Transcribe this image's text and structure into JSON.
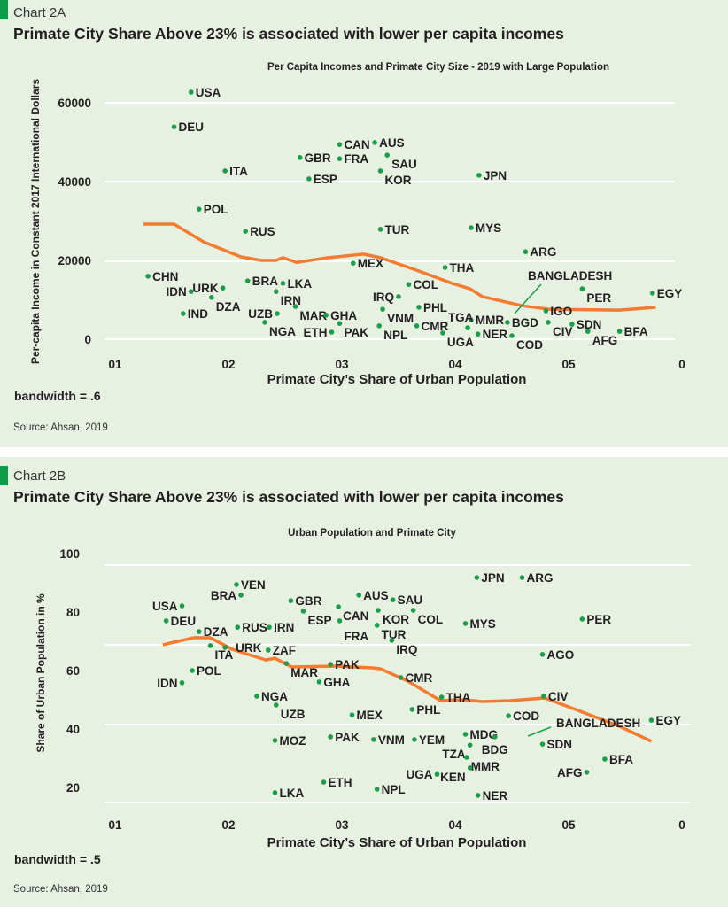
{
  "colors": {
    "background": "#e6f1e2",
    "dots": "#1a9e48",
    "smoother": "#f47b30",
    "callout": "#1a9e48",
    "tag": "#0f9a48"
  },
  "chart_a": {
    "kicker": "Chart 2A",
    "title": "Primate City Share Above 23% is associated with lower per capita incomes",
    "source": "Source: Ahsan, 2019"
  },
  "chart_b": {
    "kicker": "Chart 2B",
    "title": "Primate City Share Above 23% is associated with lower per capita incomes",
    "source": "Source: Ahsan, 2019"
  },
  "chart_data": [
    {
      "type": "scatter",
      "title": "Per Capita Incomes and Primate City Size - 2019 with Large Population",
      "xlabel": "Primate City’s Share of Urban Population",
      "ylabel": "Per-capita Income in Constant 2017 International Dollars",
      "note": "bandwidth = .6",
      "xlim": [
        0.1,
        0.6
      ],
      "ylim": [
        0,
        60000
      ],
      "x_ticks": [
        {
          "value": 0.1,
          "label": "01"
        },
        {
          "value": 0.2,
          "label": "02"
        },
        {
          "value": 0.3,
          "label": "03"
        },
        {
          "value": 0.4,
          "label": "04"
        },
        {
          "value": 0.5,
          "label": "05"
        },
        {
          "value": 0.6,
          "label": "0"
        }
      ],
      "y_ticks": [
        {
          "value": 60000,
          "label": "60000"
        },
        {
          "value": 40000,
          "label": "40000"
        },
        {
          "value": 20000,
          "label": "20000"
        },
        {
          "value": 0,
          "label": "0"
        }
      ],
      "grid": "horizontal",
      "points": [
        {
          "label": "USA",
          "x": 0.167,
          "y": 62700
        },
        {
          "label": "DEU",
          "x": 0.152,
          "y": 53900
        },
        {
          "label": "ITA",
          "x": 0.197,
          "y": 42700
        },
        {
          "label": "CAN",
          "x": 0.298,
          "y": 49400
        },
        {
          "label": "AUS",
          "x": 0.329,
          "y": 49900
        },
        {
          "label": "GBR",
          "x": 0.263,
          "y": 46100
        },
        {
          "label": "FRA",
          "x": 0.298,
          "y": 45800
        },
        {
          "label": "SAU",
          "x": 0.34,
          "y": 46700
        },
        {
          "label": "ESP",
          "x": 0.271,
          "y": 40700
        },
        {
          "label": "KOR",
          "x": 0.334,
          "y": 42700
        },
        {
          "label": "JPN",
          "x": 0.421,
          "y": 41600
        },
        {
          "label": "POL",
          "x": 0.174,
          "y": 33000
        },
        {
          "label": "RUS",
          "x": 0.215,
          "y": 27400
        },
        {
          "label": "TUR",
          "x": 0.334,
          "y": 27900
        },
        {
          "label": "MYS",
          "x": 0.414,
          "y": 28300
        },
        {
          "label": "ARG",
          "x": 0.462,
          "y": 22200
        },
        {
          "label": "MEX",
          "x": 0.31,
          "y": 19300
        },
        {
          "label": "THA",
          "x": 0.391,
          "y": 18200
        },
        {
          "label": "CHN",
          "x": 0.129,
          "y": 16000
        },
        {
          "label": "BRA",
          "x": 0.217,
          "y": 14800
        },
        {
          "label": "LKA",
          "x": 0.248,
          "y": 14200
        },
        {
          "label": "URK",
          "x": 0.195,
          "y": 13000
        },
        {
          "label": "IDN",
          "x": 0.167,
          "y": 12100
        },
        {
          "label": "IRN",
          "x": 0.242,
          "y": 12100
        },
        {
          "label": "DZA",
          "x": 0.185,
          "y": 10600
        },
        {
          "label": "COL",
          "x": 0.359,
          "y": 13900
        },
        {
          "label": "PER",
          "x": 0.512,
          "y": 12800
        },
        {
          "label": "EGY",
          "x": 0.574,
          "y": 11700
        },
        {
          "label": "IRQ",
          "x": 0.35,
          "y": 10800
        },
        {
          "label": "VNM",
          "x": 0.336,
          "y": 7600
        },
        {
          "label": "PHL",
          "x": 0.368,
          "y": 8100
        },
        {
          "label": "MAR",
          "x": 0.259,
          "y": 8300
        },
        {
          "label": "UZB",
          "x": 0.243,
          "y": 6500
        },
        {
          "label": "IND",
          "x": 0.16,
          "y": 6500
        },
        {
          "label": "GHA",
          "x": 0.286,
          "y": 6100
        },
        {
          "label": "NGA",
          "x": 0.232,
          "y": 4300
        },
        {
          "label": "PAK",
          "x": 0.298,
          "y": 4000
        },
        {
          "label": "ETH",
          "x": 0.291,
          "y": 1800
        },
        {
          "label": "NPL",
          "x": 0.333,
          "y": 3400
        },
        {
          "label": "CMR",
          "x": 0.366,
          "y": 3400
        },
        {
          "label": "UGA",
          "x": 0.389,
          "y": 1600
        },
        {
          "label": "MMR",
          "x": 0.414,
          "y": 4900
        },
        {
          "label": "TGA",
          "x": 0.411,
          "y": 2900
        },
        {
          "label": "NER",
          "x": 0.42,
          "y": 1300
        },
        {
          "label": "BGD",
          "x": 0.446,
          "y": 4300
        },
        {
          "label": "COD",
          "x": 0.45,
          "y": 900
        },
        {
          "label": "IGO",
          "x": 0.48,
          "y": 7200
        },
        {
          "label": "CIV",
          "x": 0.482,
          "y": 4300
        },
        {
          "label": "SDN",
          "x": 0.503,
          "y": 3800
        },
        {
          "label": "AFG",
          "x": 0.517,
          "y": 2000
        },
        {
          "label": "BFA",
          "x": 0.545,
          "y": 2000
        }
      ],
      "smoother": [
        [
          0.125,
          29200
        ],
        [
          0.152,
          29200
        ],
        [
          0.178,
          24700
        ],
        [
          0.211,
          20900
        ],
        [
          0.229,
          20000
        ],
        [
          0.242,
          20000
        ],
        [
          0.248,
          20700
        ],
        [
          0.26,
          19500
        ],
        [
          0.288,
          20700
        ],
        [
          0.319,
          21600
        ],
        [
          0.334,
          20700
        ],
        [
          0.366,
          17500
        ],
        [
          0.397,
          14200
        ],
        [
          0.413,
          12800
        ],
        [
          0.424,
          10800
        ],
        [
          0.459,
          8500
        ],
        [
          0.483,
          7600
        ],
        [
          0.545,
          7400
        ],
        [
          0.577,
          8100
        ]
      ],
      "annotation": {
        "text": "BANGLADESH",
        "points_to": "BGD"
      }
    },
    {
      "type": "scatter",
      "title": "Urban Population and Primate City",
      "xlabel": "Primate City’s Share of Urban Population",
      "ylabel": "Share of Urban Population in %",
      "note": "bandwidth = .5",
      "xlim": [
        0.1,
        0.6
      ],
      "ylim": [
        20,
        100
      ],
      "x_ticks": [
        {
          "value": 0.1,
          "label": "01"
        },
        {
          "value": 0.2,
          "label": "02"
        },
        {
          "value": 0.3,
          "label": "03"
        },
        {
          "value": 0.4,
          "label": "04"
        },
        {
          "value": 0.5,
          "label": "05"
        },
        {
          "value": 0.6,
          "label": "0"
        }
      ],
      "y_ticks": [
        {
          "value": 100,
          "label": "100"
        },
        {
          "value": 80,
          "label": "80"
        },
        {
          "value": 60,
          "label": "60"
        },
        {
          "value": 40,
          "label": "40"
        },
        {
          "value": 20,
          "label": "20"
        }
      ],
      "grid": "horizontal",
      "points": [
        {
          "label": "VEN",
          "x": 0.207,
          "y": 89.4
        },
        {
          "label": "BRA",
          "x": 0.211,
          "y": 85.8
        },
        {
          "label": "USA",
          "x": 0.159,
          "y": 82.1
        },
        {
          "label": "DEU",
          "x": 0.145,
          "y": 77.0
        },
        {
          "label": "GBR",
          "x": 0.255,
          "y": 83.9
        },
        {
          "label": "ESP",
          "x": 0.266,
          "y": 80.3
        },
        {
          "label": "AUS",
          "x": 0.315,
          "y": 85.8
        },
        {
          "label": "SAU",
          "x": 0.345,
          "y": 84.2
        },
        {
          "label": "CAN",
          "x": 0.297,
          "y": 81.8
        },
        {
          "label": "KOR",
          "x": 0.332,
          "y": 80.6
        },
        {
          "label": "COL",
          "x": 0.363,
          "y": 80.6
        },
        {
          "label": "FRA",
          "x": 0.298,
          "y": 77.0
        },
        {
          "label": "TUR",
          "x": 0.331,
          "y": 75.5
        },
        {
          "label": "RUS",
          "x": 0.208,
          "y": 74.8
        },
        {
          "label": "IRN",
          "x": 0.236,
          "y": 74.8
        },
        {
          "label": "DZA",
          "x": 0.174,
          "y": 73.3
        },
        {
          "label": "IRQ",
          "x": 0.344,
          "y": 70.3
        },
        {
          "label": "ITA",
          "x": 0.184,
          "y": 68.5
        },
        {
          "label": "URK",
          "x": 0.197,
          "y": 67.9
        },
        {
          "label": "ZAF",
          "x": 0.235,
          "y": 67.0
        },
        {
          "label": "MAR",
          "x": 0.251,
          "y": 62.4
        },
        {
          "label": "PAK",
          "x": 0.29,
          "y": 62.1
        },
        {
          "label": "POL",
          "x": 0.168,
          "y": 60.0
        },
        {
          "label": "IDN",
          "x": 0.159,
          "y": 55.8
        },
        {
          "label": "GHA",
          "x": 0.28,
          "y": 56.1
        },
        {
          "label": "CMR",
          "x": 0.352,
          "y": 57.6
        },
        {
          "label": "NGA",
          "x": 0.225,
          "y": 51.2
        },
        {
          "label": "UZB",
          "x": 0.242,
          "y": 48.2
        },
        {
          "label": "MEX",
          "x": 0.309,
          "y": 44.8
        },
        {
          "label": "PHL",
          "x": 0.362,
          "y": 46.7
        },
        {
          "label": "THA",
          "x": 0.388,
          "y": 50.9
        },
        {
          "label": "CIV",
          "x": 0.478,
          "y": 51.2
        },
        {
          "label": "AGO",
          "x": 0.477,
          "y": 65.5
        },
        {
          "label": "PER",
          "x": 0.512,
          "y": 77.6
        },
        {
          "label": "JPN",
          "x": 0.419,
          "y": 91.8
        },
        {
          "label": "ARG",
          "x": 0.459,
          "y": 91.8
        },
        {
          "label": "MYS",
          "x": 0.409,
          "y": 76.1
        },
        {
          "label": "COD",
          "x": 0.447,
          "y": 44.5
        },
        {
          "label": "EGY",
          "x": 0.573,
          "y": 43.0
        },
        {
          "label": "MOZ",
          "x": 0.241,
          "y": 36.1
        },
        {
          "label": "PAK",
          "x": 0.29,
          "y": 37.3
        },
        {
          "label": "VNM",
          "x": 0.328,
          "y": 36.4
        },
        {
          "label": "YEM",
          "x": 0.364,
          "y": 36.4
        },
        {
          "label": "MDG",
          "x": 0.409,
          "y": 38.2
        },
        {
          "label": "BDG",
          "x": 0.435,
          "y": 37.3
        },
        {
          "label": "TZA",
          "x": 0.413,
          "y": 34.5
        },
        {
          "label": "SDN",
          "x": 0.477,
          "y": 34.8
        },
        {
          "label": "MMR",
          "x": 0.41,
          "y": 30.3
        },
        {
          "label": "KEN",
          "x": 0.413,
          "y": 26.7
        },
        {
          "label": "BFA",
          "x": 0.532,
          "y": 29.7
        },
        {
          "label": "AFG",
          "x": 0.516,
          "y": 25.2
        },
        {
          "label": "UGA",
          "x": 0.384,
          "y": 24.5
        },
        {
          "label": "NPL",
          "x": 0.331,
          "y": 19.4
        },
        {
          "label": "ETH",
          "x": 0.284,
          "y": 21.8
        },
        {
          "label": "LKA",
          "x": 0.241,
          "y": 18.2
        },
        {
          "label": "NER",
          "x": 0.42,
          "y": 17.3
        }
      ],
      "smoother": [
        [
          0.142,
          68.8
        ],
        [
          0.169,
          71.2
        ],
        [
          0.184,
          71.2
        ],
        [
          0.203,
          67.3
        ],
        [
          0.233,
          63.6
        ],
        [
          0.241,
          64.2
        ],
        [
          0.256,
          61.2
        ],
        [
          0.295,
          61.5
        ],
        [
          0.327,
          60.9
        ],
        [
          0.334,
          60.6
        ],
        [
          0.358,
          56.4
        ],
        [
          0.387,
          49.7
        ],
        [
          0.405,
          50.0
        ],
        [
          0.416,
          49.7
        ],
        [
          0.424,
          49.4
        ],
        [
          0.448,
          49.7
        ],
        [
          0.479,
          50.6
        ],
        [
          0.506,
          46.7
        ],
        [
          0.545,
          40.9
        ],
        [
          0.573,
          35.8
        ]
      ],
      "annotation": {
        "text": "BANGLADESH",
        "points_to": "BDG"
      }
    }
  ]
}
